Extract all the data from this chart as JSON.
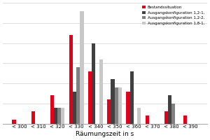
{
  "categories": [
    "< 300",
    "< 310",
    "< 320",
    "< 330",
    "< 340",
    "< 350",
    "< 360",
    "< 370",
    "< 380",
    "< 390"
  ],
  "series": {
    "Bestandssituation": [
      1,
      3,
      7,
      22,
      13,
      6,
      8,
      2,
      3,
      2
    ],
    "Ausgangskonfiguration 1,2-1,": [
      0,
      0,
      4,
      8,
      20,
      11,
      13,
      0,
      7,
      0
    ],
    "Ausgangskonfiguration 1,2-2,": [
      0,
      0,
      4,
      14,
      0,
      9,
      0,
      0,
      5,
      0
    ],
    "Ausgangskonfiguration 1,8-1,": [
      0,
      0,
      4,
      28,
      16,
      9,
      4,
      0,
      0,
      0
    ]
  },
  "colors": {
    "Bestandssituation": "#e2001a",
    "Ausgangskonfiguration 1,2-1,": "#404040",
    "Ausgangskonfiguration 1,2-2,": "#808080",
    "Ausgangskonfiguration 1,8-1,": "#c8c8c8"
  },
  "legend_labels": [
    "Bestandssituation",
    "Ausgangskonfiguration 1,2-1,",
    "Ausgangskonfiguration 1,2-2,",
    "Ausgangskonfiguration 1,8-1,"
  ],
  "xlabel": "Räumungszeit in s",
  "ylim": [
    0,
    30
  ],
  "background_color": "#ffffff",
  "grid_color": "#d0d0d0",
  "bar_width": 0.19,
  "figsize": [
    3.0,
    2.0
  ],
  "dpi": 100
}
